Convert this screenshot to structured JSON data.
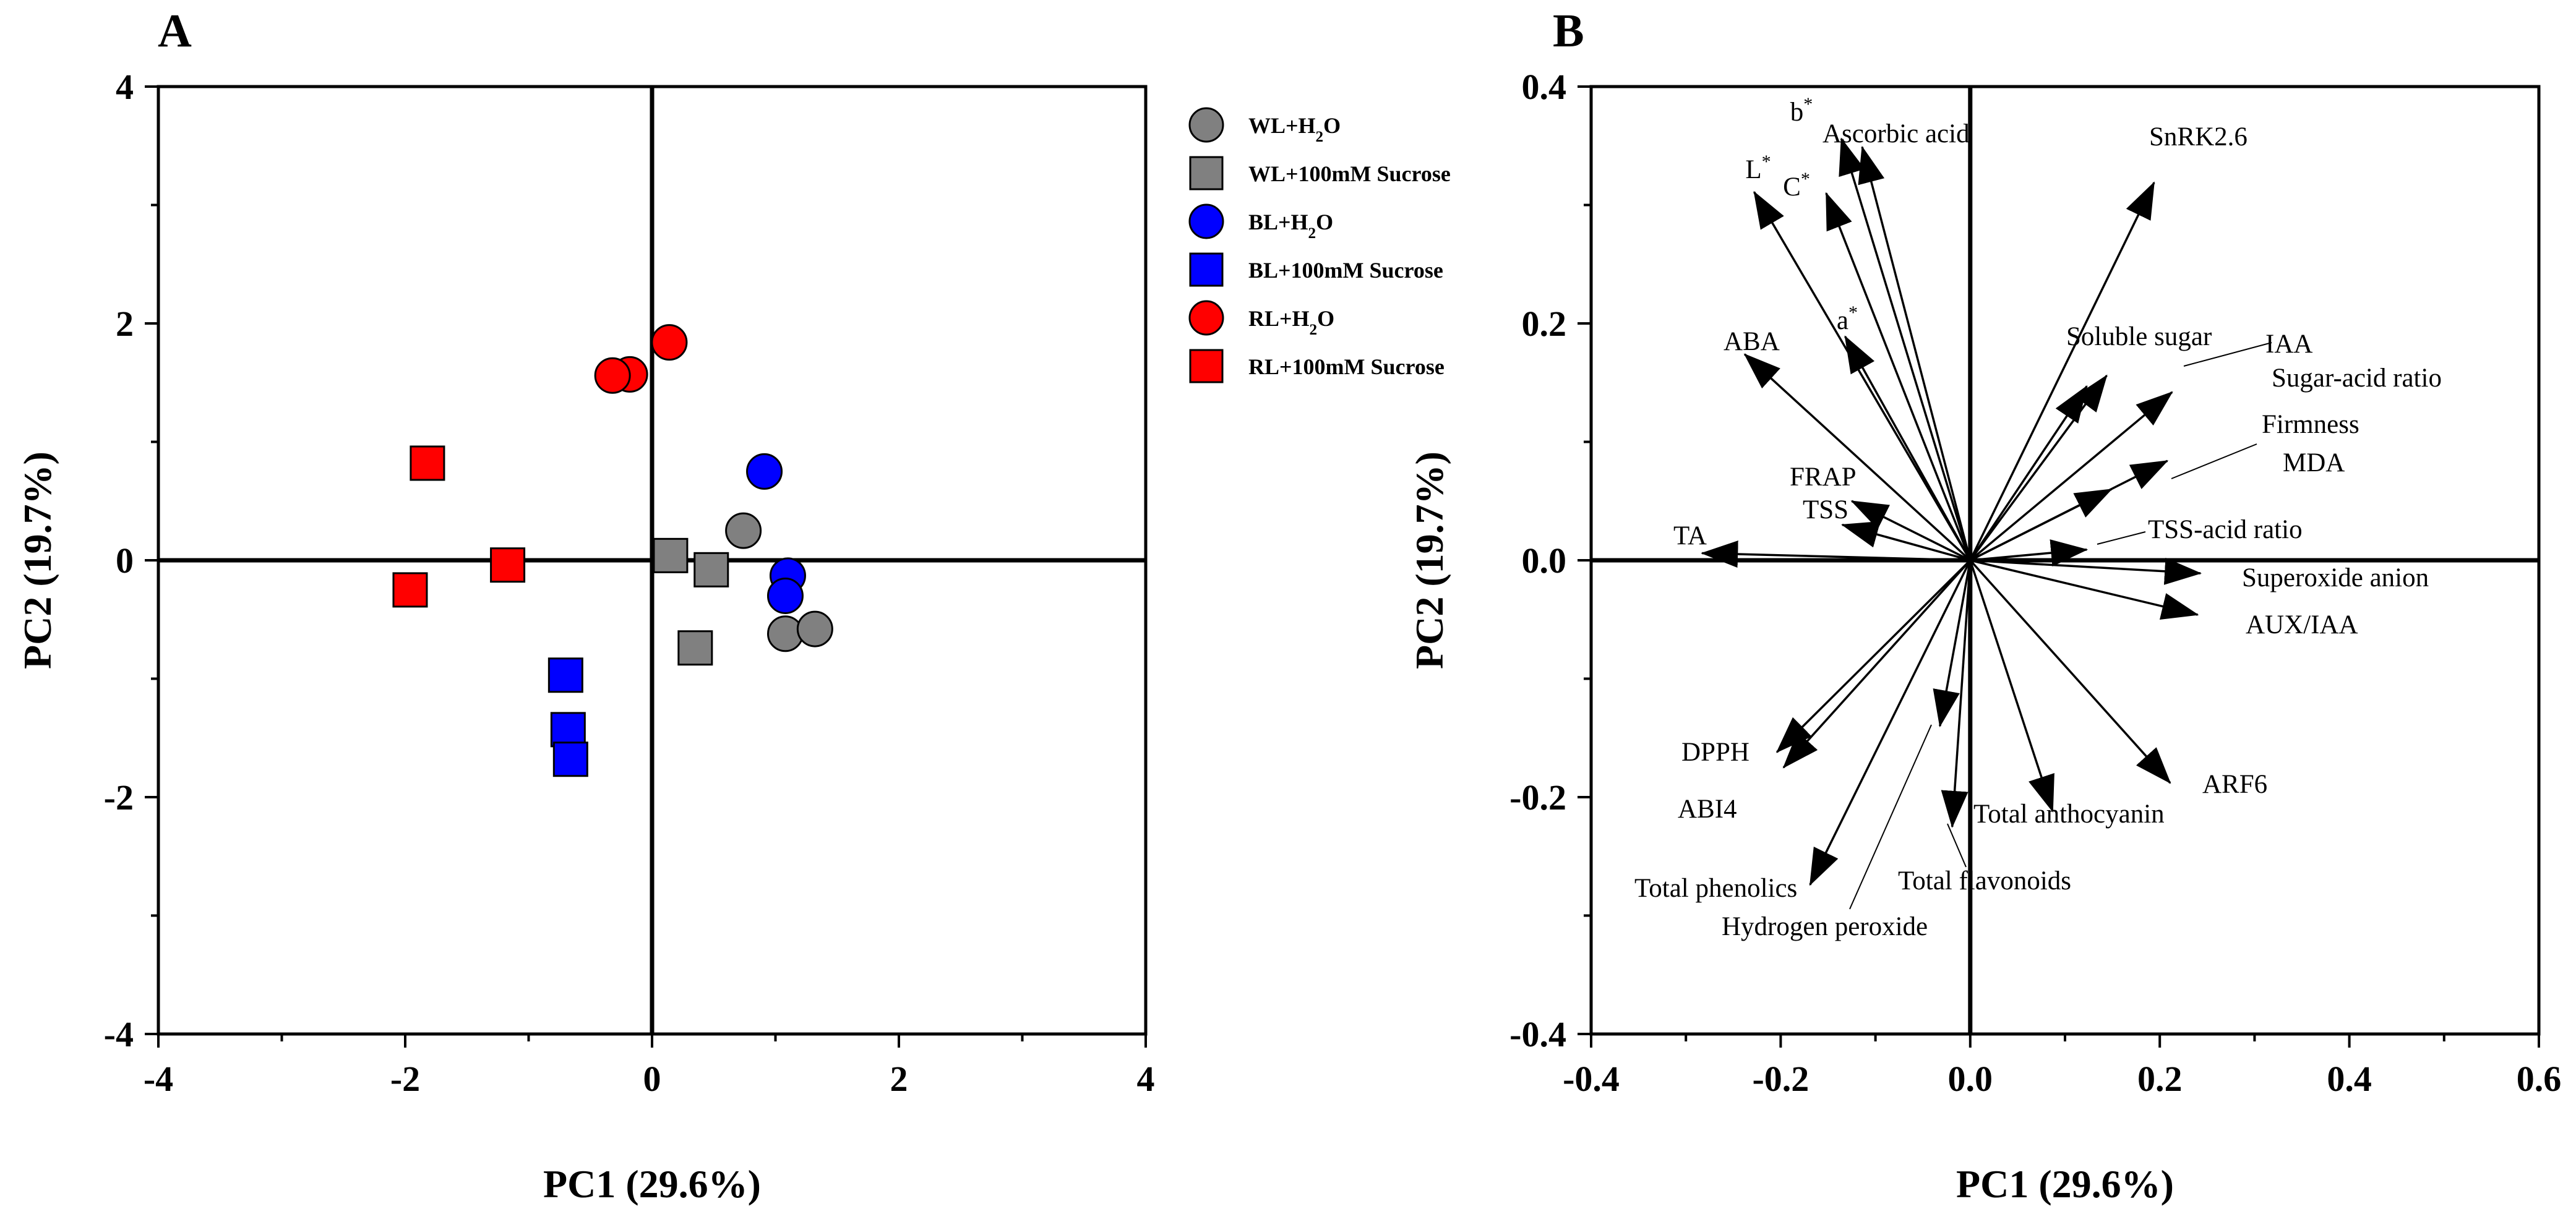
{
  "figure": {
    "panels": [
      "A",
      "B"
    ]
  },
  "chart_data": [
    {
      "panel": "A",
      "type": "scatter",
      "title": "",
      "xlabel": "PC1 (29.6%)",
      "ylabel": "PC2 (19.7%)",
      "xlim": [
        -4,
        4
      ],
      "ylim": [
        -4,
        4
      ],
      "xticks": [
        -4,
        -2,
        0,
        2,
        4
      ],
      "yticks": [
        -4,
        -2,
        0,
        2,
        4
      ],
      "legend_position": "right-outside",
      "series": [
        {
          "name": "WL+H₂O",
          "marker": "circle",
          "color": "#808080",
          "points": [
            [
              0.74,
              0.25
            ],
            [
              1.08,
              -0.62
            ],
            [
              1.32,
              -0.58
            ]
          ]
        },
        {
          "name": "WL+100mM Sucrose",
          "marker": "square",
          "color": "#808080",
          "points": [
            [
              0.15,
              0.04
            ],
            [
              0.48,
              -0.08
            ],
            [
              0.35,
              -0.74
            ]
          ]
        },
        {
          "name": "BL+H₂O",
          "marker": "circle",
          "color": "#0000ff",
          "points": [
            [
              0.91,
              0.75
            ],
            [
              1.1,
              -0.13
            ],
            [
              1.08,
              -0.3
            ]
          ]
        },
        {
          "name": "BL+100mM Sucrose",
          "marker": "square",
          "color": "#0000ff",
          "points": [
            [
              -0.7,
              -0.97
            ],
            [
              -0.68,
              -1.43
            ],
            [
              -0.66,
              -1.68
            ]
          ]
        },
        {
          "name": "RL+H₂O",
          "marker": "circle",
          "color": "#ff0000",
          "points": [
            [
              0.14,
              1.84
            ],
            [
              -0.18,
              1.57
            ],
            [
              -0.32,
              1.56
            ]
          ]
        },
        {
          "name": "RL+100mM Sucrose",
          "marker": "square",
          "color": "#ff0000",
          "points": [
            [
              -1.82,
              0.82
            ],
            [
              -1.17,
              -0.04
            ],
            [
              -1.96,
              -0.25
            ]
          ]
        }
      ]
    },
    {
      "panel": "B",
      "type": "scatter",
      "subtype": "loading-vectors",
      "title": "",
      "xlabel": "PC1 (29.6%)",
      "ylabel": "PC2 (19.7%)",
      "xlim": [
        -0.4,
        0.6
      ],
      "ylim": [
        -0.4,
        0.4
      ],
      "xticks": [
        "-0.4",
        "-0.2",
        "0.0",
        "0.2",
        "0.4",
        "0.6"
      ],
      "yticks": [
        "0.4",
        "0.2",
        "0.0",
        "-0.2",
        "-0.4"
      ],
      "vectors": [
        {
          "label": "b*",
          "x": -0.136,
          "y": 0.356
        },
        {
          "label": "Ascorbic acid",
          "x": -0.114,
          "y": 0.349
        },
        {
          "label": "L*",
          "x": -0.228,
          "y": 0.311
        },
        {
          "label": "C*",
          "x": -0.152,
          "y": 0.31
        },
        {
          "label": "SnRK2.6",
          "x": 0.194,
          "y": 0.319
        },
        {
          "label": "a*",
          "x": -0.132,
          "y": 0.189
        },
        {
          "label": "ABA",
          "x": -0.238,
          "y": 0.174
        },
        {
          "label": "Soluble sugar",
          "x": 0.123,
          "y": 0.147
        },
        {
          "label": "IAA",
          "x": 0.144,
          "y": 0.156
        },
        {
          "label": "Sugar-acid ratio",
          "x": 0.213,
          "y": 0.142
        },
        {
          "label": "Firmness",
          "x": 0.149,
          "y": 0.06
        },
        {
          "label": "MDA",
          "x": 0.208,
          "y": 0.084
        },
        {
          "label": "FRAP",
          "x": -0.125,
          "y": 0.05
        },
        {
          "label": "TSS",
          "x": -0.135,
          "y": 0.03
        },
        {
          "label": "TA",
          "x": -0.283,
          "y": 0.006
        },
        {
          "label": "TSS-acid ratio",
          "x": 0.123,
          "y": 0.009
        },
        {
          "label": "Superoxide anion",
          "x": 0.243,
          "y": -0.011
        },
        {
          "label": "AUX/IAA",
          "x": 0.24,
          "y": -0.046
        },
        {
          "label": "DPPH",
          "x": -0.204,
          "y": -0.162
        },
        {
          "label": "ABI4",
          "x": -0.197,
          "y": -0.175
        },
        {
          "label": "Total phenolics",
          "x": -0.169,
          "y": -0.274
        },
        {
          "label": "Hydrogen peroxide",
          "x": -0.032,
          "y": -0.14
        },
        {
          "label": "Total flavonoids",
          "x": -0.019,
          "y": -0.225
        },
        {
          "label": "Total anthocyanin",
          "x": 0.087,
          "y": -0.212
        },
        {
          "label": "ARF6",
          "x": 0.211,
          "y": -0.188
        }
      ]
    }
  ]
}
